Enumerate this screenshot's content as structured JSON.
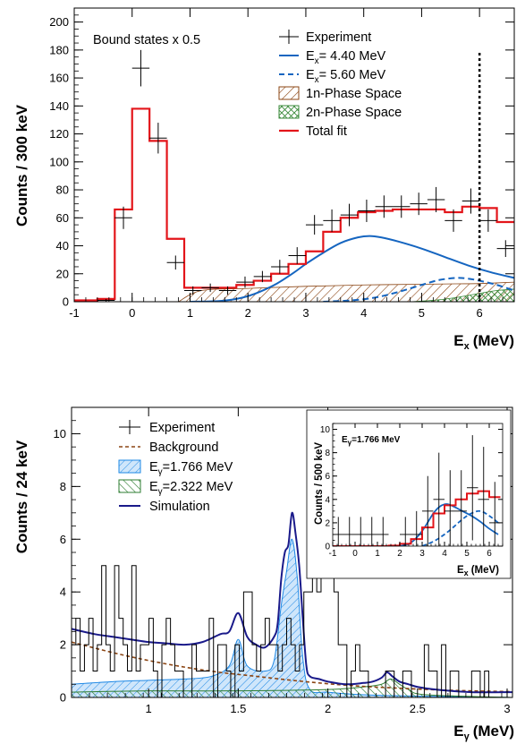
{
  "colors": {
    "experiment": "#000000",
    "ex440": "#1565c0",
    "ex560": "#1565c0",
    "phase1n": "#8b4513",
    "phase2n": "#3a8a3a",
    "total": "#e3151a",
    "background": "#8b4513",
    "eg1766": "#1e88e5",
    "eg2322": "#2e7d32",
    "simulation": "#1a1a8a",
    "dotted_line": "#000000"
  },
  "chart_data": [
    {
      "id": "top",
      "type": "line",
      "xlabel_main": "E",
      "xlabel_sub": "x",
      "xlabel_unit": "(MeV)",
      "ylabel": "Counts / 300 keV",
      "xlim": [
        -1,
        6.6
      ],
      "ylim": [
        0,
        210
      ],
      "xticks": [
        -1,
        0,
        1,
        2,
        3,
        4,
        5,
        6
      ],
      "yticks": [
        0,
        20,
        40,
        60,
        80,
        100,
        120,
        140,
        160,
        180,
        200
      ],
      "annotation": "Bound states x 0.5",
      "vertical_line_x": 6.0,
      "legend": [
        {
          "key": "experiment",
          "text": "Experiment"
        },
        {
          "key": "ex440",
          "text": "E",
          "sub": "x",
          "rest": "= 4.40 MeV"
        },
        {
          "key": "ex560",
          "text": "E",
          "sub": "x",
          "rest": "= 5.60 MeV"
        },
        {
          "key": "phase1n",
          "text": "1n-Phase Space"
        },
        {
          "key": "phase2n",
          "text": "2n-Phase Space"
        },
        {
          "key": "total",
          "text": "Total fit"
        }
      ],
      "series": [
        {
          "name": "Experiment",
          "kind": "errorbars",
          "halfwidth": 0.15,
          "x": [
            -0.75,
            -0.45,
            -0.15,
            0.15,
            0.45,
            0.75,
            1.05,
            1.35,
            1.65,
            1.95,
            2.25,
            2.55,
            2.85,
            3.15,
            3.45,
            3.75,
            4.05,
            4.35,
            4.65,
            4.95,
            5.25,
            5.55,
            5.85,
            6.15,
            6.45
          ],
          "y": [
            0,
            1,
            60,
            167,
            117,
            28,
            8,
            10,
            8,
            14,
            18,
            25,
            33,
            55,
            58,
            62,
            65,
            68,
            68,
            70,
            73,
            58,
            72,
            58,
            38
          ],
          "err": [
            0,
            1,
            8,
            13,
            11,
            5,
            3,
            3,
            3,
            4,
            4,
            5,
            6,
            7,
            8,
            8,
            8,
            8,
            8,
            8,
            9,
            8,
            9,
            8,
            6
          ]
        },
        {
          "name": "Total fit",
          "kind": "step",
          "edges": [
            -1.0,
            -0.6,
            -0.3,
            0.0,
            0.3,
            0.6,
            0.9,
            1.2,
            1.5,
            1.8,
            2.1,
            2.4,
            2.7,
            3.0,
            3.3,
            3.6,
            3.9,
            4.2,
            4.5,
            4.8,
            5.1,
            5.4,
            5.7,
            6.0,
            6.3,
            6.6
          ],
          "y": [
            1,
            2,
            66,
            138,
            115,
            45,
            10,
            10,
            10,
            12,
            15,
            20,
            27,
            36,
            50,
            60,
            64,
            65,
            66,
            66,
            66,
            64,
            68,
            67,
            57
          ]
        },
        {
          "name": "4.40 MeV",
          "kind": "smooth",
          "x": [
            1.0,
            1.5,
            1.8,
            2.0,
            2.2,
            2.5,
            2.8,
            3.0,
            3.3,
            3.6,
            3.9,
            4.1,
            4.3,
            4.6,
            5.0,
            5.4,
            5.8,
            6.2,
            6.6
          ],
          "y": [
            0,
            0.5,
            2,
            4,
            7,
            13,
            21,
            27,
            35,
            42,
            46,
            47,
            46,
            43,
            38,
            32,
            26,
            21,
            17
          ]
        },
        {
          "name": "5.60 MeV",
          "kind": "smooth",
          "x": [
            3.3,
            3.8,
            4.2,
            4.6,
            5.0,
            5.3,
            5.6,
            5.8,
            6.0,
            6.3,
            6.6
          ],
          "y": [
            0,
            1,
            3,
            7,
            12,
            15.5,
            17,
            16.5,
            15,
            12,
            8
          ]
        },
        {
          "name": "1n-Phase Space",
          "kind": "area",
          "x": [
            0.8,
            1.2,
            2.0,
            3.0,
            4.0,
            5.0,
            5.6,
            6.0,
            6.6
          ],
          "y": [
            0,
            8,
            9.5,
            11,
            12,
            12.5,
            12.8,
            13,
            14
          ]
        },
        {
          "name": "2n-Phase Space",
          "kind": "area",
          "x": [
            4.8,
            5.2,
            5.6,
            6.0,
            6.3,
            6.6
          ],
          "y": [
            0,
            1,
            3,
            6,
            8,
            9
          ]
        }
      ]
    },
    {
      "id": "bottom",
      "type": "line",
      "xlabel_main": "E",
      "xlabel_sub": "γ",
      "xlabel_unit": "(MeV)",
      "ylabel": "Counts / 24 keV",
      "xlim": [
        0.57,
        3.03
      ],
      "ylim": [
        0,
        11
      ],
      "xticks": [
        1,
        1.5,
        2,
        2.5,
        3
      ],
      "yticks": [
        0,
        2,
        4,
        6,
        8,
        10
      ],
      "legend": [
        {
          "key": "experiment",
          "text": "Experiment"
        },
        {
          "key": "background",
          "text": "Background"
        },
        {
          "key": "eg1766",
          "text": "E",
          "sub": "γ",
          "rest": "=1.766 MeV"
        },
        {
          "key": "eg2322",
          "text": "E",
          "sub": "γ",
          "rest": "=2.322 MeV"
        },
        {
          "key": "simulation",
          "text": "Simulation"
        }
      ],
      "series": [
        {
          "name": "Experiment",
          "kind": "histogram",
          "x0": 0.57,
          "bin": 0.024,
          "y": [
            2,
            3,
            1,
            2,
            3,
            1,
            2,
            5,
            2,
            1,
            5,
            3,
            2,
            1,
            5,
            1,
            2,
            2,
            3,
            1,
            0,
            2,
            3,
            2,
            1,
            1,
            0,
            0,
            2,
            1,
            1,
            1,
            3,
            0,
            2,
            2,
            1,
            0,
            2,
            1,
            4,
            4,
            2,
            1,
            2,
            3,
            2,
            2,
            1,
            2,
            3,
            2,
            1,
            2,
            4,
            4,
            5,
            4,
            6,
            5,
            7,
            4,
            2,
            2,
            0,
            1,
            2,
            1,
            1,
            0,
            0,
            0,
            0,
            1,
            1,
            0,
            0,
            1,
            1,
            0,
            0,
            0,
            2,
            1,
            1,
            0,
            2,
            0,
            1,
            1,
            0,
            0,
            0,
            1,
            1,
            0,
            1,
            0,
            0,
            0,
            0,
            0,
            0,
            0
          ]
        },
        {
          "name": "Simulation",
          "kind": "smooth",
          "x": [
            0.57,
            0.7,
            0.8,
            0.9,
            1.0,
            1.1,
            1.2,
            1.3,
            1.4,
            1.45,
            1.5,
            1.55,
            1.6,
            1.65,
            1.7,
            1.72,
            1.74,
            1.76,
            1.78,
            1.8,
            1.82,
            1.84,
            1.86,
            1.88,
            1.9,
            1.95,
            2.0,
            2.1,
            2.2,
            2.25,
            2.3,
            2.33,
            2.36,
            2.4,
            2.45,
            2.5,
            2.6,
            2.8,
            3.03
          ],
          "y": [
            2.6,
            2.4,
            2.3,
            2.2,
            2.1,
            2.05,
            2.0,
            2.1,
            2.4,
            2.5,
            3.2,
            2.3,
            2.0,
            1.9,
            2.3,
            2.8,
            4.5,
            5.5,
            5.8,
            7.0,
            6.2,
            5.0,
            3.0,
            1.2,
            0.8,
            0.7,
            0.6,
            0.5,
            0.55,
            0.6,
            0.75,
            0.95,
            0.8,
            0.6,
            0.5,
            0.4,
            0.3,
            0.2,
            0.2
          ]
        },
        {
          "name": "Background",
          "kind": "smooth",
          "x": [
            0.57,
            0.8,
            1.0,
            1.2,
            1.4,
            1.6,
            1.8,
            2.0,
            2.2,
            2.4,
            2.6,
            2.8,
            3.03
          ],
          "y": [
            2.1,
            1.7,
            1.4,
            1.15,
            0.95,
            0.8,
            0.65,
            0.52,
            0.42,
            0.35,
            0.29,
            0.25,
            0.22
          ]
        },
        {
          "name": "1.766 MeV",
          "kind": "area",
          "x": [
            0.57,
            0.8,
            1.0,
            1.2,
            1.35,
            1.45,
            1.5,
            1.55,
            1.65,
            1.7,
            1.74,
            1.77,
            1.8,
            1.83,
            1.86,
            1.9,
            2.0,
            2.2,
            2.5,
            3.03
          ],
          "y": [
            0.5,
            0.6,
            0.65,
            0.7,
            0.8,
            1.2,
            2.2,
            1.2,
            1.0,
            1.4,
            3.5,
            4.8,
            6.0,
            4.5,
            1.5,
            0.3,
            0.2,
            0.1,
            0.05,
            0
          ]
        },
        {
          "name": "2.322 MeV",
          "kind": "area",
          "x": [
            0.57,
            1.0,
            1.5,
            2.0,
            2.2,
            2.3,
            2.35,
            2.4,
            2.45,
            2.55,
            3.03
          ],
          "y": [
            0.2,
            0.25,
            0.25,
            0.3,
            0.4,
            0.5,
            0.7,
            0.5,
            0.3,
            0.1,
            0
          ]
        }
      ]
    },
    {
      "id": "inset",
      "type": "line",
      "xlabel_main": "E",
      "xlabel_sub": "x",
      "xlabel_unit": "(MeV)",
      "ylabel": "Counts / 500 keV",
      "annotation_main": "E",
      "annotation_sub": "γ",
      "annotation_rest": "=1.766 MeV",
      "xlim": [
        -1,
        6.6
      ],
      "ylim": [
        0,
        10.5
      ],
      "xticks": [
        -1,
        0,
        1,
        2,
        3,
        4,
        5,
        6
      ],
      "yticks": [
        0,
        2,
        4,
        6,
        8,
        10
      ],
      "series": [
        {
          "name": "Experiment",
          "kind": "errorbars",
          "halfwidth": 0.25,
          "x": [
            -0.75,
            -0.25,
            0.25,
            0.75,
            1.25,
            1.75,
            2.25,
            2.75,
            3.25,
            3.75,
            4.25,
            4.75,
            5.25,
            5.75,
            6.25
          ],
          "y": [
            1,
            1,
            1,
            1,
            1,
            0,
            1,
            1,
            3,
            4,
            3,
            3,
            5,
            4,
            2
          ],
          "err": [
            1.5,
            1.5,
            1.5,
            1.5,
            1.5,
            0,
            1.5,
            2.0,
            3.0,
            4.0,
            3.5,
            3.5,
            4.5,
            4.5,
            3.5
          ]
        },
        {
          "name": "Total",
          "kind": "step",
          "edges": [
            -1.0,
            -0.5,
            0.0,
            0.5,
            1.0,
            1.5,
            2.0,
            2.5,
            3.0,
            3.5,
            4.0,
            4.5,
            5.0,
            5.5,
            6.0,
            6.5
          ],
          "y": [
            0,
            0,
            0,
            0,
            0,
            0.05,
            0.2,
            0.6,
            1.6,
            2.8,
            3.5,
            4.0,
            4.5,
            4.7,
            4.2
          ]
        },
        {
          "name": "4.40",
          "kind": "smooth",
          "x": [
            2.0,
            2.5,
            3.0,
            3.5,
            3.8,
            4.1,
            4.4,
            4.8,
            5.2,
            5.6,
            6.0,
            6.4
          ],
          "y": [
            0,
            0.3,
            1.3,
            2.8,
            3.4,
            3.6,
            3.4,
            3.0,
            2.6,
            2.1,
            1.5,
            1.0
          ]
        },
        {
          "name": "5.60",
          "kind": "smooth",
          "x": [
            3.0,
            3.6,
            4.2,
            4.8,
            5.2,
            5.6,
            6.0,
            6.4
          ],
          "y": [
            0,
            0.5,
            1.3,
            2.3,
            2.8,
            3.0,
            2.6,
            2.0
          ]
        }
      ]
    }
  ]
}
